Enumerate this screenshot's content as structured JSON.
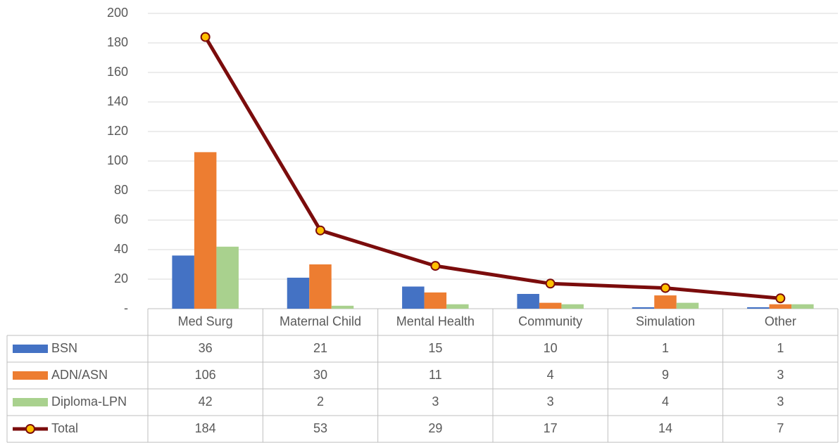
{
  "chart_data": {
    "type": "bar",
    "categories": [
      "Med Surg",
      "Maternal Child",
      "Mental Health",
      "Community",
      "Simulation",
      "Other"
    ],
    "series": [
      {
        "name": "BSN",
        "color": "#4472c4",
        "values": [
          36,
          21,
          15,
          10,
          1,
          1
        ]
      },
      {
        "name": "ADN/ASN",
        "color": "#ed7d31",
        "values": [
          106,
          30,
          11,
          4,
          9,
          3
        ]
      },
      {
        "name": "Diploma-LPN",
        "color": "#a9d18e",
        "values": [
          42,
          2,
          3,
          3,
          4,
          3
        ]
      },
      {
        "name": "Total",
        "type": "line",
        "color": "#7b0c0c",
        "marker_color": "#ffc000",
        "values": [
          184,
          53,
          29,
          17,
          14,
          7
        ]
      }
    ],
    "ylim": [
      0,
      200
    ],
    "yticks": [
      {
        "value": 0,
        "label": "-"
      },
      20,
      40,
      60,
      80,
      100,
      120,
      140,
      160,
      180,
      200
    ],
    "grid": true,
    "data_table": true
  }
}
